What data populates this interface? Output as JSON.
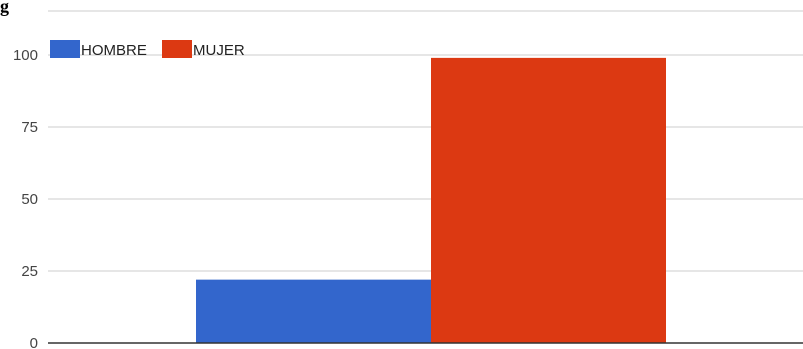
{
  "header": {
    "partial_title": "g"
  },
  "chart_data": {
    "type": "bar",
    "categories": [
      ""
    ],
    "series": [
      {
        "name": "HOMBRE",
        "values": [
          22
        ],
        "color": "#3366cc"
      },
      {
        "name": "MUJER",
        "values": [
          99
        ],
        "color": "#dc3912"
      }
    ],
    "title": "",
    "xlabel": "",
    "ylabel": "",
    "ylim": [
      0,
      100
    ],
    "yticks": [
      "0",
      "25",
      "50",
      "75",
      "100"
    ],
    "grid": true,
    "legend_position": "top-left"
  }
}
